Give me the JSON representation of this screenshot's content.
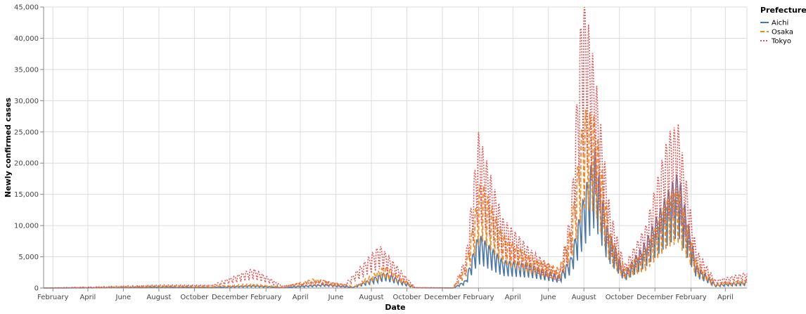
{
  "chart_data": {
    "type": "line",
    "xlabel": "Date",
    "ylabel": "Newly confirmed cases",
    "x_axis_type": "date",
    "x_range": [
      "2020-01-16",
      "2023-05-08"
    ],
    "ylim": [
      0,
      45000
    ],
    "y_ticks": [
      0,
      5000,
      10000,
      15000,
      20000,
      25000,
      30000,
      35000,
      40000,
      45000
    ],
    "y_tick_labels": [
      "0",
      "5,000",
      "10,000",
      "15,000",
      "20,000",
      "25,000",
      "30,000",
      "35,000",
      "40,000",
      "45,000"
    ],
    "x_ticks": [
      {
        "date": "2020-02-01",
        "label": "February"
      },
      {
        "date": "2020-04-01",
        "label": "April"
      },
      {
        "date": "2020-06-01",
        "label": "June"
      },
      {
        "date": "2020-08-01",
        "label": "August"
      },
      {
        "date": "2020-10-01",
        "label": "October"
      },
      {
        "date": "2020-12-01",
        "label": "December"
      },
      {
        "date": "2021-02-01",
        "label": "February"
      },
      {
        "date": "2021-04-01",
        "label": "April"
      },
      {
        "date": "2021-06-01",
        "label": "June"
      },
      {
        "date": "2021-08-01",
        "label": "August"
      },
      {
        "date": "2021-10-01",
        "label": "October"
      },
      {
        "date": "2021-12-01",
        "label": "December"
      },
      {
        "date": "2022-02-01",
        "label": "February"
      },
      {
        "date": "2022-04-01",
        "label": "April"
      },
      {
        "date": "2022-06-01",
        "label": "June"
      },
      {
        "date": "2022-08-01",
        "label": "August"
      },
      {
        "date": "2022-10-01",
        "label": "October"
      },
      {
        "date": "2022-12-01",
        "label": "December"
      },
      {
        "date": "2023-02-01",
        "label": "February"
      },
      {
        "date": "2023-04-01",
        "label": "April"
      }
    ],
    "grid": true,
    "legend": {
      "title": "Prefecture",
      "placement": "top-right"
    },
    "series": [
      {
        "name": "Aichi",
        "color": "#4c78a8",
        "dash": "solid",
        "points": [
          [
            "2020-01-16",
            0
          ],
          [
            "2020-04-15",
            30
          ],
          [
            "2020-08-05",
            150
          ],
          [
            "2020-11-01",
            80
          ],
          [
            "2021-01-10",
            300
          ],
          [
            "2021-03-01",
            60
          ],
          [
            "2021-05-15",
            500
          ],
          [
            "2021-07-01",
            100
          ],
          [
            "2021-08-25",
            2000
          ],
          [
            "2021-10-15",
            30
          ],
          [
            "2021-12-20",
            10
          ],
          [
            "2022-01-10",
            1000
          ],
          [
            "2022-02-01",
            7000
          ],
          [
            "2022-03-15",
            3500
          ],
          [
            "2022-05-01",
            3000
          ],
          [
            "2022-06-20",
            1500
          ],
          [
            "2022-07-10",
            4000
          ],
          [
            "2022-08-01",
            12000
          ],
          [
            "2022-08-20",
            18000
          ],
          [
            "2022-09-10",
            8000
          ],
          [
            "2022-10-10",
            2000
          ],
          [
            "2022-11-15",
            6000
          ],
          [
            "2022-12-20",
            12000
          ],
          [
            "2023-01-10",
            15000
          ],
          [
            "2023-02-10",
            3000
          ],
          [
            "2023-03-15",
            400
          ],
          [
            "2023-05-08",
            800
          ]
        ]
      },
      {
        "name": "Osaka",
        "color": "#f58518",
        "dash": "dashed",
        "points": [
          [
            "2020-01-16",
            0
          ],
          [
            "2020-04-15",
            80
          ],
          [
            "2020-08-05",
            250
          ],
          [
            "2020-11-01",
            200
          ],
          [
            "2021-01-10",
            600
          ],
          [
            "2021-03-01",
            100
          ],
          [
            "2021-04-25",
            1200
          ],
          [
            "2021-07-01",
            200
          ],
          [
            "2021-08-25",
            2800
          ],
          [
            "2021-10-15",
            50
          ],
          [
            "2021-12-20",
            20
          ],
          [
            "2022-01-10",
            3000
          ],
          [
            "2022-02-05",
            14000
          ],
          [
            "2022-03-15",
            7000
          ],
          [
            "2022-05-01",
            4000
          ],
          [
            "2022-06-20",
            2500
          ],
          [
            "2022-07-10",
            8000
          ],
          [
            "2022-08-01",
            23000
          ],
          [
            "2022-08-20",
            22000
          ],
          [
            "2022-09-15",
            7000
          ],
          [
            "2022-10-10",
            2500
          ],
          [
            "2022-11-15",
            5000
          ],
          [
            "2022-12-25",
            12000
          ],
          [
            "2023-01-10",
            13000
          ],
          [
            "2023-02-10",
            3500
          ],
          [
            "2023-03-15",
            600
          ],
          [
            "2023-05-08",
            1000
          ]
        ]
      },
      {
        "name": "Tokyo",
        "color": "#e45756",
        "dash": "dotted",
        "points": [
          [
            "2020-01-16",
            0
          ],
          [
            "2020-04-15",
            150
          ],
          [
            "2020-08-05",
            400
          ],
          [
            "2020-11-01",
            400
          ],
          [
            "2021-01-10",
            2500
          ],
          [
            "2021-03-01",
            300
          ],
          [
            "2021-05-10",
            1000
          ],
          [
            "2021-06-15",
            400
          ],
          [
            "2021-08-15",
            5500
          ],
          [
            "2021-10-15",
            60
          ],
          [
            "2021-12-20",
            20
          ],
          [
            "2022-01-10",
            4000
          ],
          [
            "2022-02-01",
            20000
          ],
          [
            "2022-03-15",
            9000
          ],
          [
            "2022-05-01",
            5000
          ],
          [
            "2022-06-20",
            2000
          ],
          [
            "2022-07-10",
            10000
          ],
          [
            "2022-07-30",
            39000
          ],
          [
            "2022-08-20",
            28000
          ],
          [
            "2022-09-15",
            10000
          ],
          [
            "2022-10-10",
            3000
          ],
          [
            "2022-11-15",
            8000
          ],
          [
            "2022-12-25",
            20000
          ],
          [
            "2023-01-10",
            21000
          ],
          [
            "2023-02-10",
            5000
          ],
          [
            "2023-03-15",
            1000
          ],
          [
            "2023-05-08",
            2000
          ]
        ]
      }
    ]
  }
}
